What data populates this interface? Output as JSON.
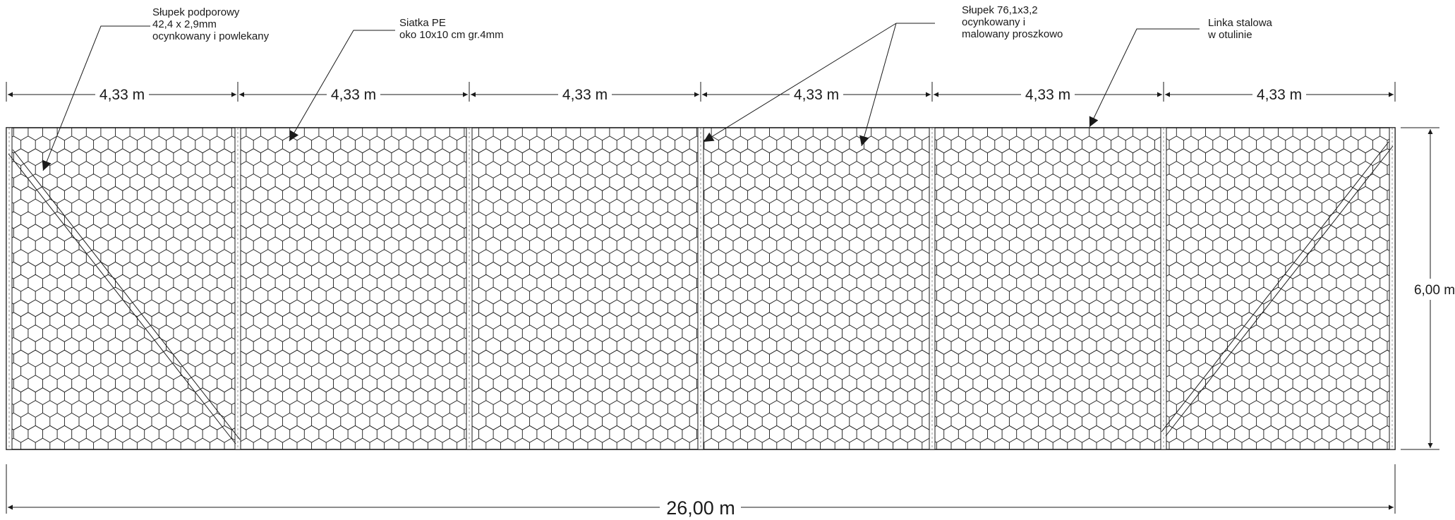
{
  "drawing": {
    "callouts": {
      "support_post": [
        "Słupek podporowy",
        "42,4 x 2,9mm",
        "ocynkowany i powlekany"
      ],
      "mesh": [
        "Siatka PE",
        "oko 10x10 cm gr.4mm"
      ],
      "post": [
        "Słupek 76,1x3,2",
        "ocynkowany i",
        "malowany proszkowo"
      ],
      "cable": [
        "Linka stalowa",
        "w otulinie"
      ]
    },
    "dimensions": {
      "span_labels": [
        "4,33 m",
        "4,33 m",
        "4,33 m",
        "4,33 m",
        "4,33 m",
        "4,33 m"
      ],
      "height_label": "6,00 m",
      "total_length_label": "26,00 m"
    },
    "structure": {
      "span_count": 6,
      "span_length_m": 4.33,
      "total_length_m": 26.0,
      "height_m": 6.0,
      "mesh": "hexagonal",
      "diagonal_braces": "first and last span"
    },
    "colors": {
      "line": "#1a1a1a",
      "background": "#ffffff"
    }
  }
}
